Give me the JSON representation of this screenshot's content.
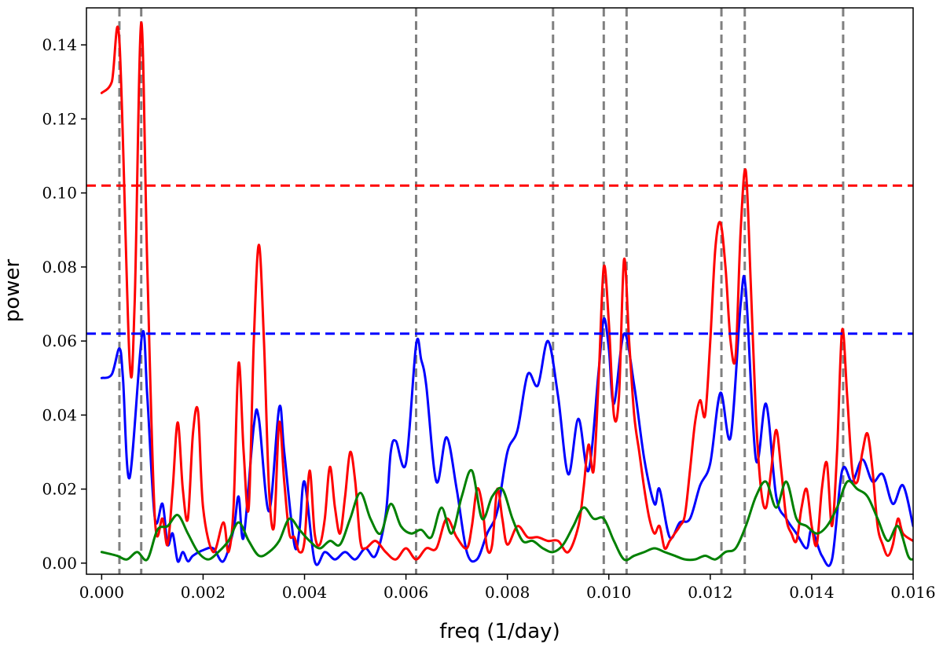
{
  "chart_data": {
    "type": "line",
    "title": "",
    "xlabel": "freq (1/day)",
    "ylabel": "power",
    "xlim": [
      -0.0003,
      0.016
    ],
    "ylim": [
      -0.003,
      0.15
    ],
    "xticks": [
      0.0,
      0.002,
      0.004,
      0.006,
      0.008,
      0.01,
      0.012,
      0.014,
      0.016
    ],
    "xtick_labels": [
      "0.000",
      "0.002",
      "0.004",
      "0.006",
      "0.008",
      "0.010",
      "0.012",
      "0.014",
      "0.016"
    ],
    "yticks": [
      0.0,
      0.02,
      0.04,
      0.06,
      0.08,
      0.1,
      0.12,
      0.14
    ],
    "ytick_labels": [
      "0.00",
      "0.02",
      "0.04",
      "0.06",
      "0.08",
      "0.10",
      "0.12",
      "0.14"
    ],
    "grid": false,
    "series": [
      {
        "color": "#0000ff",
        "x": [
          0.0,
          0.0002,
          0.00035,
          0.00042,
          0.00055,
          0.0008,
          0.0009,
          0.00105,
          0.0012,
          0.0013,
          0.0014,
          0.0015,
          0.0016,
          0.0017,
          0.0018,
          0.002,
          0.0022,
          0.0024,
          0.0026,
          0.0027,
          0.0028,
          0.003,
          0.0031,
          0.0033,
          0.0035,
          0.0036,
          0.0038,
          0.0039,
          0.004,
          0.0042,
          0.0044,
          0.0046,
          0.0048,
          0.005,
          0.0052,
          0.0054,
          0.0056,
          0.0057,
          0.0058,
          0.006,
          0.0062,
          0.0063,
          0.0064,
          0.0066,
          0.0068,
          0.007,
          0.0072,
          0.0074,
          0.0076,
          0.0078,
          0.008,
          0.0082,
          0.0084,
          0.0086,
          0.0088,
          0.009,
          0.0092,
          0.0094,
          0.0096,
          0.0098,
          0.0099,
          0.01,
          0.0101,
          0.0103,
          0.0105,
          0.0107,
          0.0109,
          0.011,
          0.0112,
          0.0114,
          0.0116,
          0.0118,
          0.012,
          0.0122,
          0.0124,
          0.0126,
          0.0127,
          0.0129,
          0.0131,
          0.0133,
          0.0135,
          0.0137,
          0.0139,
          0.014,
          0.0142,
          0.0144,
          0.0146,
          0.0148,
          0.015,
          0.0152,
          0.0154,
          0.0156,
          0.0158,
          0.016
        ],
        "y": [
          0.05,
          0.051,
          0.058,
          0.05,
          0.023,
          0.062,
          0.045,
          0.012,
          0.016,
          0.005,
          0.008,
          0.0005,
          0.003,
          0.0005,
          0.002,
          0.0035,
          0.004,
          0.0005,
          0.009,
          0.018,
          0.007,
          0.037,
          0.039,
          0.014,
          0.042,
          0.03,
          0.005,
          0.009,
          0.022,
          0.0005,
          0.003,
          0.001,
          0.003,
          0.001,
          0.004,
          0.002,
          0.013,
          0.03,
          0.033,
          0.027,
          0.059,
          0.055,
          0.048,
          0.022,
          0.034,
          0.02,
          0.003,
          0.001,
          0.008,
          0.014,
          0.03,
          0.036,
          0.051,
          0.048,
          0.06,
          0.045,
          0.024,
          0.039,
          0.025,
          0.052,
          0.066,
          0.058,
          0.043,
          0.062,
          0.048,
          0.028,
          0.016,
          0.02,
          0.007,
          0.011,
          0.012,
          0.021,
          0.027,
          0.046,
          0.034,
          0.07,
          0.074,
          0.028,
          0.043,
          0.018,
          0.012,
          0.008,
          0.004,
          0.009,
          0.002,
          0.001,
          0.025,
          0.022,
          0.028,
          0.022,
          0.024,
          0.016,
          0.021,
          0.01
        ]
      },
      {
        "color": "#ff0000",
        "x": [
          0.0,
          0.0002,
          0.00035,
          0.00055,
          0.00065,
          0.00078,
          0.0009,
          0.00105,
          0.0012,
          0.0013,
          0.0014,
          0.0015,
          0.0016,
          0.0017,
          0.0018,
          0.0019,
          0.002,
          0.0022,
          0.0024,
          0.0025,
          0.0026,
          0.0027,
          0.0028,
          0.0029,
          0.003,
          0.0031,
          0.0032,
          0.0033,
          0.0034,
          0.0035,
          0.0036,
          0.0037,
          0.0038,
          0.0039,
          0.004,
          0.0041,
          0.0042,
          0.0043,
          0.0044,
          0.0045,
          0.0046,
          0.0047,
          0.0048,
          0.0049,
          0.005,
          0.0051,
          0.0052,
          0.0054,
          0.0056,
          0.0058,
          0.006,
          0.0062,
          0.0064,
          0.0066,
          0.0068,
          0.007,
          0.0072,
          0.0073,
          0.0074,
          0.0075,
          0.0076,
          0.0077,
          0.0078,
          0.0079,
          0.008,
          0.0082,
          0.0084,
          0.0086,
          0.0088,
          0.009,
          0.0092,
          0.0094,
          0.0095,
          0.0096,
          0.0097,
          0.0098,
          0.0099,
          0.01,
          0.0101,
          0.0102,
          0.0103,
          0.0104,
          0.0105,
          0.0106,
          0.0107,
          0.0108,
          0.0109,
          0.011,
          0.0111,
          0.0112,
          0.0113,
          0.0114,
          0.0115,
          0.0116,
          0.0117,
          0.0118,
          0.0119,
          0.012,
          0.0121,
          0.0122,
          0.0123,
          0.0124,
          0.0125,
          0.0126,
          0.0127,
          0.0128,
          0.0129,
          0.013,
          0.0131,
          0.0132,
          0.0133,
          0.0134,
          0.0135,
          0.0136,
          0.0137,
          0.0138,
          0.0139,
          0.014,
          0.0141,
          0.0142,
          0.0143,
          0.0144,
          0.0145,
          0.0146,
          0.0147,
          0.0148,
          0.0149,
          0.015,
          0.0151,
          0.0152,
          0.0153,
          0.0154,
          0.0155,
          0.0156,
          0.0157,
          0.0158,
          0.016
        ],
        "y": [
          0.127,
          0.13,
          0.141,
          0.055,
          0.07,
          0.146,
          0.08,
          0.012,
          0.012,
          0.005,
          0.02,
          0.038,
          0.02,
          0.012,
          0.035,
          0.041,
          0.015,
          0.003,
          0.011,
          0.003,
          0.015,
          0.054,
          0.03,
          0.015,
          0.06,
          0.086,
          0.06,
          0.02,
          0.01,
          0.038,
          0.022,
          0.008,
          0.007,
          0.003,
          0.006,
          0.025,
          0.008,
          0.005,
          0.012,
          0.026,
          0.015,
          0.008,
          0.018,
          0.03,
          0.022,
          0.006,
          0.004,
          0.006,
          0.003,
          0.001,
          0.004,
          0.001,
          0.004,
          0.004,
          0.012,
          0.007,
          0.004,
          0.01,
          0.02,
          0.016,
          0.004,
          0.005,
          0.02,
          0.012,
          0.005,
          0.01,
          0.007,
          0.007,
          0.006,
          0.006,
          0.003,
          0.01,
          0.02,
          0.032,
          0.025,
          0.05,
          0.08,
          0.065,
          0.04,
          0.045,
          0.082,
          0.06,
          0.04,
          0.03,
          0.02,
          0.012,
          0.008,
          0.01,
          0.004,
          0.006,
          0.008,
          0.01,
          0.013,
          0.025,
          0.038,
          0.044,
          0.04,
          0.06,
          0.085,
          0.092,
          0.08,
          0.06,
          0.056,
          0.09,
          0.106,
          0.075,
          0.04,
          0.02,
          0.015,
          0.025,
          0.036,
          0.025,
          0.012,
          0.008,
          0.006,
          0.015,
          0.02,
          0.01,
          0.005,
          0.02,
          0.027,
          0.01,
          0.03,
          0.063,
          0.045,
          0.025,
          0.022,
          0.03,
          0.035,
          0.025,
          0.01,
          0.005,
          0.002,
          0.005,
          0.012,
          0.008,
          0.006
        ],
        "dashes": [
          {
            "color": "#ff0000",
            "y": 0.102
          }
        ]
      },
      {
        "color": "#008000",
        "x": [
          0.0,
          0.0003,
          0.0005,
          0.0007,
          0.0009,
          0.0011,
          0.0013,
          0.0015,
          0.0017,
          0.0019,
          0.0021,
          0.0023,
          0.0025,
          0.0027,
          0.0029,
          0.0031,
          0.0033,
          0.0035,
          0.0037,
          0.0039,
          0.0041,
          0.0043,
          0.0045,
          0.0047,
          0.0049,
          0.0051,
          0.0053,
          0.0055,
          0.0057,
          0.0059,
          0.0061,
          0.0063,
          0.0065,
          0.0067,
          0.0069,
          0.0071,
          0.0073,
          0.0075,
          0.0077,
          0.0079,
          0.0081,
          0.0083,
          0.0085,
          0.0087,
          0.0089,
          0.0091,
          0.0093,
          0.0095,
          0.0097,
          0.0099,
          0.0101,
          0.0103,
          0.0105,
          0.0107,
          0.0109,
          0.0111,
          0.0113,
          0.0115,
          0.0117,
          0.0119,
          0.0121,
          0.0123,
          0.0125,
          0.0127,
          0.0129,
          0.0131,
          0.0133,
          0.0135,
          0.0137,
          0.0139,
          0.0141,
          0.0143,
          0.0145,
          0.0147,
          0.0149,
          0.0151,
          0.0153,
          0.0155,
          0.0157,
          0.0159,
          0.016
        ],
        "y": [
          0.003,
          0.002,
          0.001,
          0.003,
          0.001,
          0.009,
          0.01,
          0.013,
          0.008,
          0.003,
          0.001,
          0.003,
          0.006,
          0.011,
          0.006,
          0.002,
          0.003,
          0.006,
          0.012,
          0.009,
          0.006,
          0.004,
          0.006,
          0.005,
          0.012,
          0.019,
          0.012,
          0.008,
          0.016,
          0.01,
          0.008,
          0.009,
          0.007,
          0.015,
          0.008,
          0.018,
          0.025,
          0.012,
          0.018,
          0.02,
          0.012,
          0.006,
          0.006,
          0.004,
          0.003,
          0.005,
          0.01,
          0.015,
          0.012,
          0.012,
          0.006,
          0.001,
          0.002,
          0.003,
          0.004,
          0.003,
          0.002,
          0.001,
          0.001,
          0.002,
          0.001,
          0.003,
          0.004,
          0.01,
          0.018,
          0.022,
          0.015,
          0.022,
          0.012,
          0.01,
          0.008,
          0.01,
          0.015,
          0.022,
          0.02,
          0.018,
          0.012,
          0.006,
          0.01,
          0.002,
          0.001
        ]
      }
    ],
    "hlines": [
      {
        "y": 0.102,
        "color": "#ff0000"
      },
      {
        "y": 0.062,
        "color": "#0000ff"
      }
    ],
    "vlines": {
      "color": "#808080",
      "x": [
        0.00035,
        0.00078,
        0.0062,
        0.0089,
        0.0099,
        0.01035,
        0.01222,
        0.01268,
        0.01462
      ]
    }
  }
}
